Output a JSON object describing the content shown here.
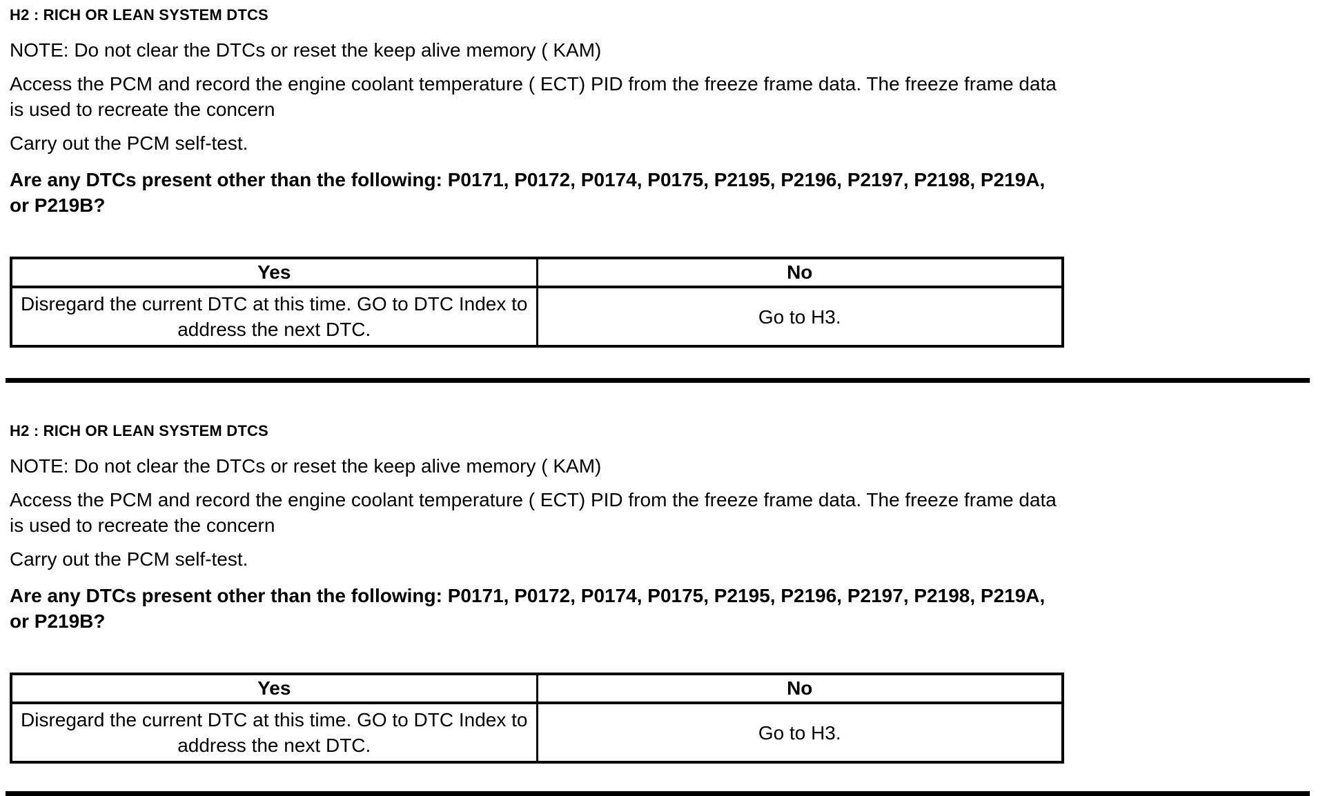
{
  "colors": {
    "text": "#000000",
    "background": "#ffffff",
    "table_border": "#000000"
  },
  "sections": [
    {
      "heading": "H2 : RICH OR LEAN SYSTEM DTCS",
      "note": "NOTE: Do not clear the DTCs or reset the keep alive memory ( KAM)",
      "step_access": "Access the PCM and record the engine coolant temperature ( ECT) PID from the freeze frame data. The freeze frame data is used to recreate the concern",
      "step_selftest": "Carry out the PCM self-test.",
      "question": "Are any DTCs present other than the following: P0171, P0172, P0174, P0175, P2195, P2196, P2197, P2198, P219A, or P219B?",
      "table": {
        "headers": [
          "Yes",
          "No"
        ],
        "rows": [
          [
            "Disregard the current DTC at this time. GO to DTC Index to address the next DTC.",
            "Go to H3."
          ]
        ]
      }
    },
    {
      "heading": "H2 : RICH OR LEAN SYSTEM DTCS",
      "note": "NOTE: Do not clear the DTCs or reset the keep alive memory ( KAM)",
      "step_access": "Access the PCM and record the engine coolant temperature ( ECT) PID from the freeze frame data. The freeze frame data is used to recreate the concern",
      "step_selftest": "Carry out the PCM self-test.",
      "question": "Are any DTCs present other than the following: P0171, P0172, P0174, P0175, P2195, P2196, P2197, P2198, P219A, or P219B?",
      "table": {
        "headers": [
          "Yes",
          "No"
        ],
        "rows": [
          [
            "Disregard the current DTC at this time. GO to DTC Index to address the next DTC.",
            "Go to H3."
          ]
        ]
      }
    }
  ]
}
